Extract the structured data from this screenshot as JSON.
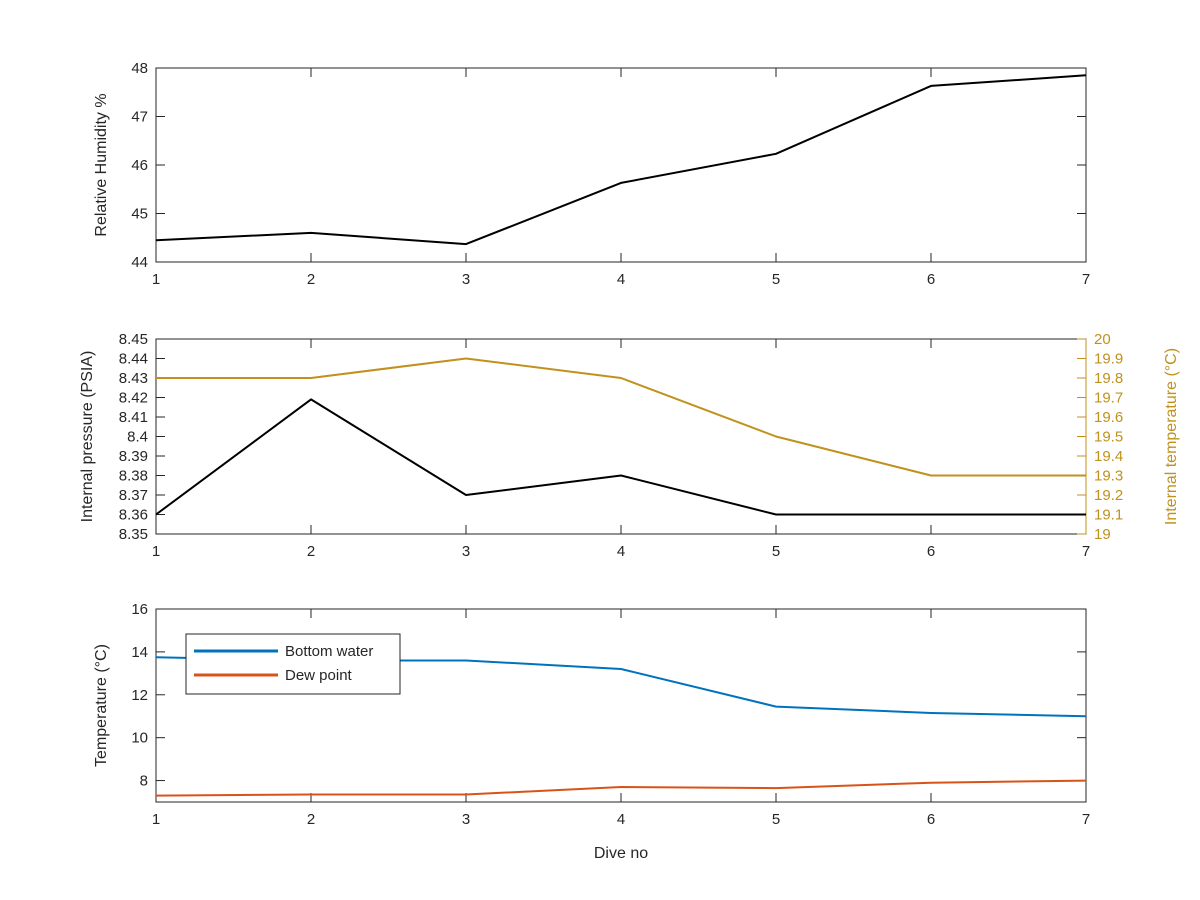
{
  "chart_data": [
    {
      "type": "line",
      "x": [
        1,
        2,
        3,
        4,
        5,
        6,
        7
      ],
      "xlim": [
        1,
        7
      ],
      "xticks": [
        "1",
        "2",
        "3",
        "4",
        "5",
        "6",
        "7"
      ],
      "ylabel": "Relative Humidity %",
      "ylim": [
        44,
        48
      ],
      "yticks": [
        "44",
        "45",
        "46",
        "47",
        "48"
      ],
      "grid": false,
      "series": [
        {
          "values": [
            44.45,
            44.6,
            44.37,
            45.63,
            46.23,
            47.63,
            47.85
          ],
          "color": "#000000"
        }
      ]
    },
    {
      "type": "line",
      "x": [
        1,
        2,
        3,
        4,
        5,
        6,
        7
      ],
      "xlim": [
        1,
        7
      ],
      "xticks": [
        "1",
        "2",
        "3",
        "4",
        "5",
        "6",
        "7"
      ],
      "ylabel": "Internal pressure (PSIA)",
      "ylim": [
        8.35,
        8.45
      ],
      "yticks": [
        "8.35",
        "8.36",
        "8.37",
        "8.38",
        "8.39",
        "8.4",
        "8.41",
        "8.42",
        "8.43",
        "8.44",
        "8.45"
      ],
      "ylabel_right": "Internal temperature (°C)",
      "ylim_right": [
        19,
        20
      ],
      "yticks_right": [
        "19",
        "19.1",
        "19.2",
        "19.3",
        "19.4",
        "19.5",
        "19.6",
        "19.7",
        "19.8",
        "19.9",
        "20"
      ],
      "grid": false,
      "series": [
        {
          "values": [
            8.36,
            8.419,
            8.37,
            8.38,
            8.36,
            8.36,
            8.36
          ],
          "color": "#000000",
          "axis": "left"
        },
        {
          "values": [
            19.8,
            19.8,
            19.9,
            19.8,
            19.5,
            19.3,
            19.3
          ],
          "color": "#c0911d",
          "axis": "right"
        }
      ]
    },
    {
      "type": "line",
      "x": [
        1,
        2,
        3,
        4,
        5,
        6,
        7
      ],
      "xlim": [
        1,
        7
      ],
      "xticks": [
        "1",
        "2",
        "3",
        "4",
        "5",
        "6",
        "7"
      ],
      "xlabel": "Dive no",
      "ylabel": "Temperature (°C)",
      "ylim": [
        7,
        16
      ],
      "yticks": [
        "8",
        "10",
        "12",
        "14",
        "16"
      ],
      "grid": false,
      "legend": "top-left",
      "series": [
        {
          "name": "Bottom water",
          "values": [
            13.75,
            13.6,
            13.6,
            13.2,
            11.45,
            11.15,
            11.0
          ],
          "color": "#0072bd"
        },
        {
          "name": "Dew point",
          "values": [
            7.3,
            7.35,
            7.35,
            7.7,
            7.65,
            7.9,
            8.0
          ],
          "color": "#d95319"
        }
      ]
    }
  ]
}
